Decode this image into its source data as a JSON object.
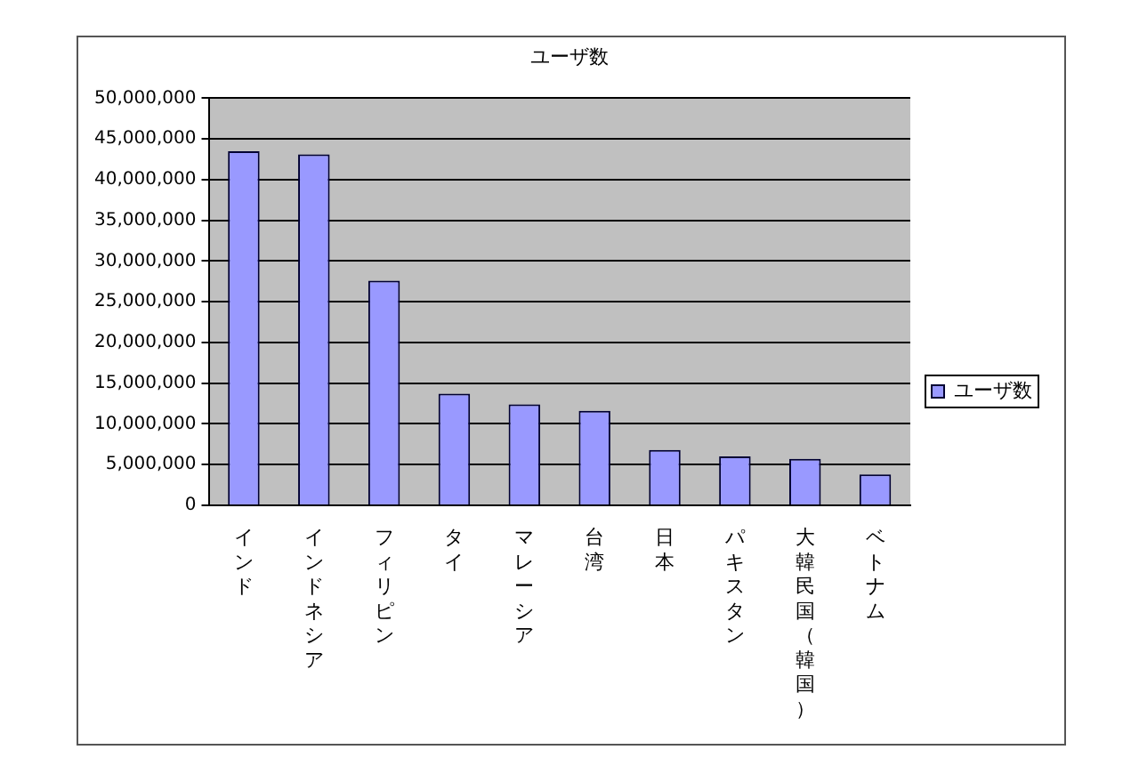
{
  "chart_data": {
    "type": "bar",
    "title": "ユーザ数",
    "categories": [
      "インド",
      "インドネシア",
      "フィリピン",
      "タイ",
      "マレーシア",
      "台湾",
      "日本",
      "パキスタン",
      "大韓民国（韓国）",
      "ベトナム"
    ],
    "series": [
      {
        "name": "ユーザ数",
        "color": "#9999ff",
        "values": [
          43500000,
          43100000,
          27600000,
          13700000,
          12400000,
          11600000,
          6800000,
          6000000,
          5700000,
          3800000
        ]
      }
    ],
    "ylim": [
      0,
      50000000
    ],
    "yticks": [
      0,
      {
        "value": 5000000,
        "label": "5,000,000"
      },
      {
        "value": 10000000,
        "label": "10,000,000"
      },
      {
        "value": 15000000,
        "label": "15,000,000"
      },
      {
        "value": 20000000,
        "label": "20,000,000"
      },
      {
        "value": 25000000,
        "label": "25,000,000"
      },
      {
        "value": 30000000,
        "label": "30,000,000"
      },
      {
        "value": 35000000,
        "label": "35,000,000"
      },
      {
        "value": 40000000,
        "label": "40,000,000"
      },
      {
        "value": 45000000,
        "label": "45,000,000"
      },
      {
        "value": 50000000,
        "label": "50,000,000"
      }
    ],
    "grid": "y",
    "legend": "right"
  }
}
